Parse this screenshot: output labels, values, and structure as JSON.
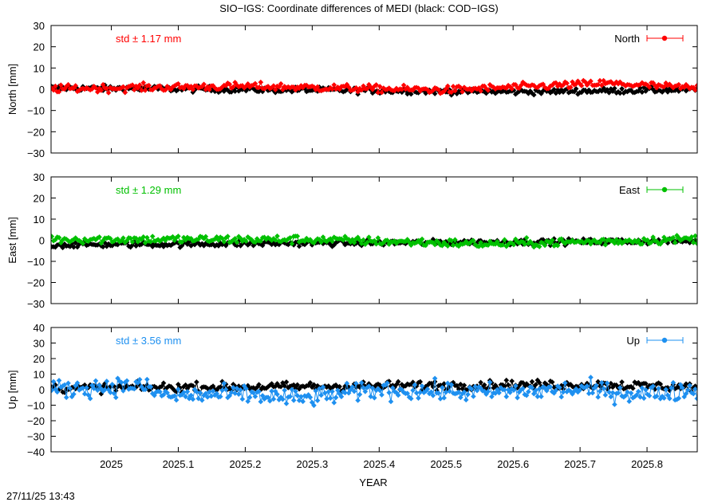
{
  "title": "SIO−IGS: Coordinate differences of MEDI (black: COD−IGS)",
  "timestamp": "27/11/25 13:43",
  "chart_data": [
    {
      "type": "line",
      "panel": "north",
      "ylabel": "North [mm]",
      "ylim": [
        -30,
        30
      ],
      "yticks": [
        -30,
        -20,
        -10,
        0,
        10,
        20,
        30
      ],
      "xlim": [
        2024.91,
        2025.875
      ],
      "legend_label": "North",
      "std_label": "std ± 1.17 mm",
      "color": "#ff0000",
      "series": [
        {
          "name": "North",
          "role": "SIO−IGS",
          "color": "#ff0000",
          "noise": 0.9,
          "trend": [
            [
              2024.91,
              0.2
            ],
            [
              2025.2,
              1.4
            ],
            [
              2025.5,
              -0.4
            ],
            [
              2025.74,
              2.8
            ],
            [
              2025.875,
              0.5
            ]
          ]
        },
        {
          "role": "COD−IGS",
          "color": "#000000",
          "noise": 0.7,
          "trend": [
            [
              2024.91,
              0.6
            ],
            [
              2025.3,
              -0.4
            ],
            [
              2025.6,
              -1.2
            ],
            [
              2025.875,
              -0.2
            ]
          ]
        }
      ]
    },
    {
      "type": "line",
      "panel": "east",
      "ylabel": "East [mm]",
      "ylim": [
        -30,
        30
      ],
      "yticks": [
        -30,
        -20,
        -10,
        0,
        10,
        20,
        30
      ],
      "xlim": [
        2024.91,
        2025.875
      ],
      "legend_label": "East",
      "std_label": "std ± 1.29 mm",
      "color": "#00c000",
      "series": [
        {
          "name": "East",
          "role": "SIO−IGS",
          "color": "#00c000",
          "noise": 1.0,
          "trend": [
            [
              2024.91,
              0.5
            ],
            [
              2025.3,
              0.3
            ],
            [
              2025.56,
              -1.8
            ],
            [
              2025.7,
              -0.8
            ],
            [
              2025.875,
              0.6
            ]
          ]
        },
        {
          "role": "COD−IGS",
          "color": "#000000",
          "noise": 0.7,
          "trend": [
            [
              2024.91,
              -2.2
            ],
            [
              2025.4,
              -1.2
            ],
            [
              2025.875,
              -0.4
            ]
          ]
        }
      ]
    },
    {
      "type": "line",
      "panel": "up",
      "ylabel": "Up [mm]",
      "ylim": [
        -40,
        40
      ],
      "yticks": [
        -40,
        -30,
        -20,
        -10,
        0,
        10,
        20,
        30,
        40
      ],
      "xlim": [
        2024.91,
        2025.875
      ],
      "legend_label": "Up",
      "std_label": "std ± 3.56 mm",
      "color": "#1e90f0",
      "series": [
        {
          "name": "Up",
          "role": "SIO−IGS",
          "color": "#1e90f0",
          "noise": 3.0,
          "trend": [
            [
              2024.91,
              0
            ],
            [
              2025.04,
              3
            ],
            [
              2025.08,
              -4
            ],
            [
              2025.2,
              -3
            ],
            [
              2025.28,
              -6
            ],
            [
              2025.4,
              0
            ],
            [
              2025.55,
              -2
            ],
            [
              2025.7,
              0
            ],
            [
              2025.8,
              -3
            ],
            [
              2025.875,
              0
            ]
          ]
        },
        {
          "role": "COD−IGS",
          "color": "#000000",
          "noise": 1.5,
          "trend": [
            [
              2024.91,
              1
            ],
            [
              2025.3,
              2
            ],
            [
              2025.55,
              3
            ],
            [
              2025.75,
              3
            ],
            [
              2025.875,
              1.5
            ]
          ]
        }
      ]
    }
  ],
  "xaxis": {
    "label": "YEAR",
    "ticks": [
      2025,
      2025.1,
      2025.2,
      2025.3,
      2025.4,
      2025.5,
      2025.6,
      2025.7,
      2025.8
    ],
    "tick_labels": [
      "2025",
      "2025.1",
      "2025.2",
      "2025.3",
      "2025.4",
      "2025.5",
      "2025.6",
      "2025.7",
      "2025.8"
    ]
  }
}
